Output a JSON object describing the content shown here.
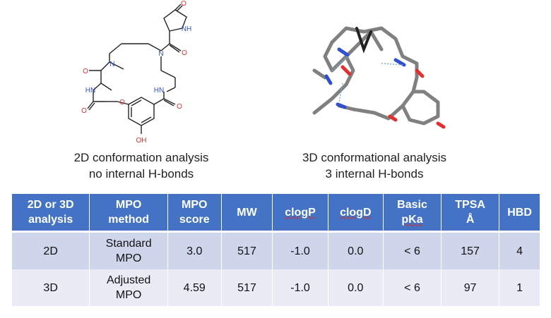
{
  "molecule_2d": {
    "atom_labels": {
      "ring_lactam_o": "O",
      "ring_lactam_nh": "NH",
      "amide_n": "N",
      "amide_o_top": "O",
      "methyl_n": "N",
      "left_amide_o": "O",
      "left_nh": "HN",
      "right_nh": "HN",
      "left_ester_o": "O",
      "ether_o": "O",
      "right_amide_o": "O",
      "hydroxyl": "OH"
    }
  },
  "captions": {
    "left_line1": "2D conformation analysis",
    "left_line2": "no internal H-bonds",
    "right_line1": "3D conformational analysis",
    "right_line2": "3 internal H-bonds"
  },
  "table": {
    "headers": [
      {
        "line1": "2D or 3D",
        "line2": "analysis"
      },
      {
        "line1": "MPO",
        "line2": "method"
      },
      {
        "line1": "MPO",
        "line2": "score"
      },
      {
        "line1": "MW",
        "line2": ""
      },
      {
        "line1": "clogP",
        "line2": ""
      },
      {
        "line1": "clogD",
        "line2": ""
      },
      {
        "line1": "Basic",
        "line2": "pKa"
      },
      {
        "line1": "TPSA",
        "line2": "Å"
      },
      {
        "line1": "HBD",
        "line2": ""
      }
    ],
    "rows": [
      {
        "analysis": "2D",
        "method_line1": "Standard",
        "method_line2": "MPO",
        "score": "3.0",
        "mw": "517",
        "clogp": "-1.0",
        "clogd": "0.0",
        "pka": "< 6",
        "tpsa": "157",
        "hbd": "4"
      },
      {
        "analysis": "3D",
        "method_line1": "Adjusted",
        "method_line2": "MPO",
        "score": "4.59",
        "mw": "517",
        "clogp": "-1.0",
        "clogd": "0.0",
        "pka": "< 6",
        "tpsa": "97",
        "hbd": "1"
      }
    ]
  },
  "colors": {
    "header_bg": "#4472c4",
    "row1_bg": "#cfd5ea",
    "row2_bg": "#e9ebf5",
    "oxygen": "#e03030",
    "nitrogen": "#3050d0",
    "bond": "#222222",
    "stick_carbon": "#808080"
  }
}
